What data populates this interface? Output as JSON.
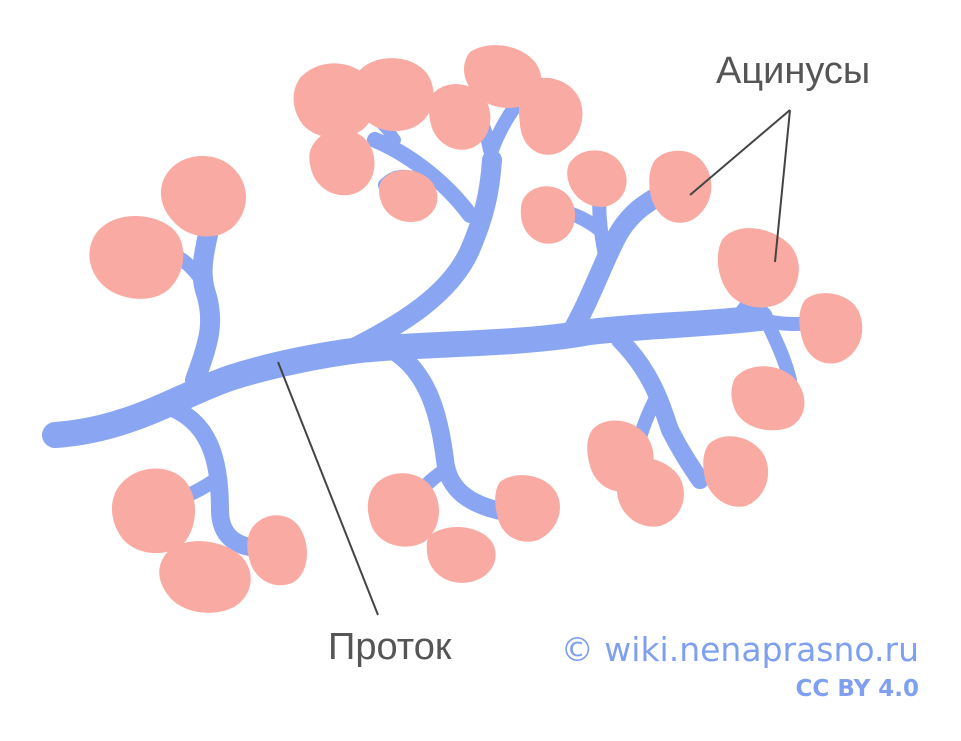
{
  "labels": {
    "acini": "Ацинусы",
    "duct": "Проток"
  },
  "credits": {
    "site": "© wiki.nenaprasno.ru",
    "license": "CC BY 4.0"
  },
  "colors": {
    "duct": "#8aa6f2",
    "acinus": "#f9aaa3",
    "label_text": "#555555",
    "leader_line": "#444444",
    "credit_text": "#7f9ff0",
    "background": "#ffffff"
  }
}
